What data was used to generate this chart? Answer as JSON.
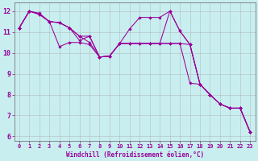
{
  "xlabel": "Windchill (Refroidissement éolien,°C)",
  "background_color": "#c8eef0",
  "line_color": "#990099",
  "grid_color": "#b0b0b0",
  "xlim": [
    -0.5,
    23.5
  ],
  "ylim": [
    5.8,
    12.4
  ],
  "yticks": [
    6,
    7,
    8,
    9,
    10,
    11,
    12
  ],
  "xticks": [
    0,
    1,
    2,
    3,
    4,
    5,
    6,
    7,
    8,
    9,
    10,
    11,
    12,
    13,
    14,
    15,
    16,
    17,
    18,
    19,
    20,
    21,
    22,
    23
  ],
  "line1": [
    11.2,
    12.0,
    11.9,
    11.5,
    11.45,
    11.2,
    10.6,
    10.8,
    9.8,
    9.85,
    10.45,
    11.15,
    11.7,
    11.7,
    11.7,
    12.0,
    11.05,
    10.4,
    8.5,
    8.0,
    7.55,
    7.35,
    7.35,
    6.2
  ],
  "line2": [
    11.2,
    12.0,
    11.85,
    11.5,
    10.3,
    10.5,
    10.5,
    10.4,
    9.8,
    9.85,
    10.45,
    10.45,
    10.45,
    10.45,
    10.45,
    12.0,
    11.05,
    10.4,
    8.5,
    8.0,
    7.55,
    7.35,
    7.35,
    6.2
  ],
  "line3": [
    11.2,
    12.0,
    11.85,
    11.5,
    11.45,
    11.2,
    10.8,
    10.8,
    9.8,
    9.85,
    10.45,
    10.45,
    10.45,
    10.45,
    10.45,
    10.45,
    10.45,
    8.55,
    8.5,
    8.0,
    7.55,
    7.35,
    7.35,
    6.2
  ],
  "line4": [
    11.2,
    12.0,
    11.85,
    11.5,
    11.45,
    11.2,
    10.8,
    10.5,
    9.8,
    9.85,
    10.45,
    10.45,
    10.45,
    10.45,
    10.45,
    10.45,
    10.45,
    10.4,
    8.5,
    8.0,
    7.55,
    7.35,
    7.35,
    6.2
  ]
}
